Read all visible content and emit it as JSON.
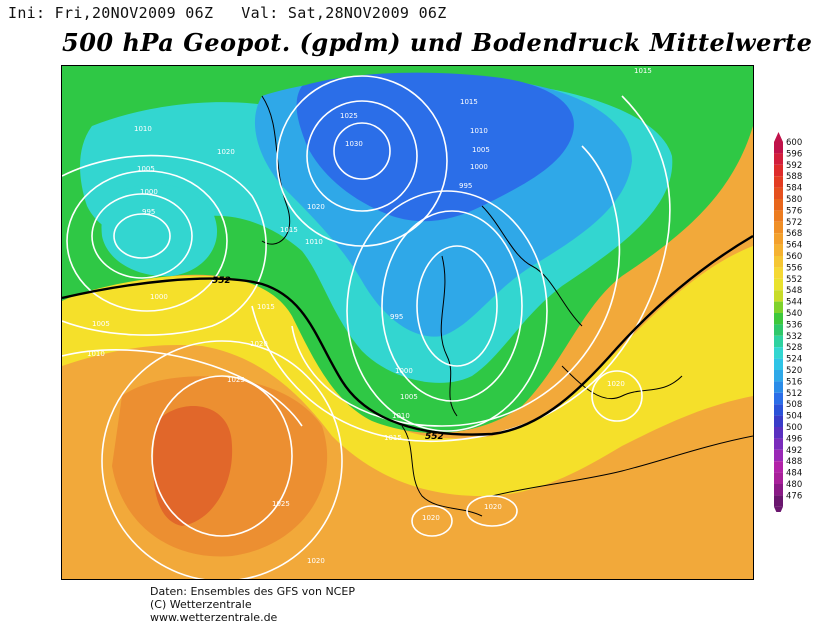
{
  "header": {
    "init_label": "Ini: Fri,20NOV2009 06Z",
    "valid_label": "Val: Sat,28NOV2009 06Z",
    "title": "500 hPa Geopot. (gpdm) und Bodendruck Mittelwerte"
  },
  "map": {
    "isobar_labels": [
      "1015",
      "1010",
      "1005",
      "1000",
      "995",
      "1025",
      "1030",
      "1020"
    ],
    "geopotential_label": "552",
    "colors": {
      "green": "#2fc845",
      "cyan": "#33d6d0",
      "light_blue": "#2fa8e8",
      "blue": "#2b6ee8",
      "yellow": "#f5e02a",
      "orange": "#f2a93a",
      "dark_orange": "#e87a2a",
      "red_orange": "#d9502a",
      "land_dark": "#e36a1f"
    }
  },
  "legend": {
    "levels": [
      "600",
      "596",
      "592",
      "588",
      "584",
      "580",
      "576",
      "572",
      "568",
      "564",
      "560",
      "556",
      "552",
      "548",
      "544",
      "540",
      "536",
      "532",
      "528",
      "524",
      "520",
      "516",
      "512",
      "508",
      "504",
      "500",
      "496",
      "492",
      "488",
      "484",
      "480",
      "476"
    ],
    "colors": [
      "#c0124a",
      "#d21e3c",
      "#de2c2c",
      "#e33c22",
      "#e5501e",
      "#e8661c",
      "#ec7c20",
      "#f08f26",
      "#f3a02c",
      "#f5b232",
      "#f5c634",
      "#f5d834",
      "#e9e22e",
      "#c8dc2a",
      "#7fd22c",
      "#3ec83c",
      "#2fc86a",
      "#2fd2a0",
      "#33d6d0",
      "#2fc4e6",
      "#2fa8e8",
      "#2b8ce8",
      "#2b6ee8",
      "#2b52d8",
      "#3a3cc8",
      "#5a30c0",
      "#7a2cbc",
      "#9a28b6",
      "#b222a8",
      "#a8209a",
      "#8a1a86",
      "#6a166e"
    ]
  },
  "footer": {
    "line1": "Daten: Ensembles des GFS von NCEP",
    "line2": "(C) Wetterzentrale",
    "line3": "www.wetterzentrale.de"
  }
}
